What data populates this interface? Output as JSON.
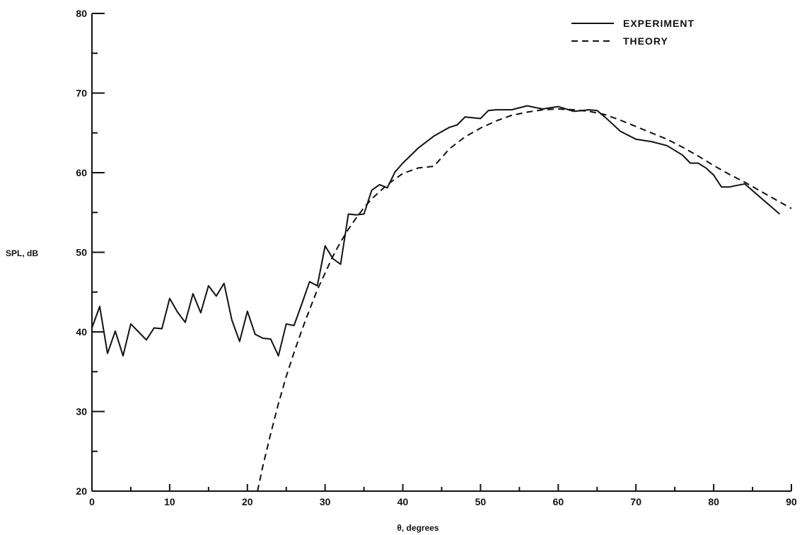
{
  "chart_data": {
    "type": "line",
    "title": "",
    "xlabel": "θ, degrees",
    "ylabel": "SPL, dB",
    "xlim": [
      0,
      90
    ],
    "ylim": [
      20,
      80
    ],
    "x_ticks": [
      0,
      10,
      20,
      30,
      40,
      50,
      60,
      70,
      80,
      90
    ],
    "y_ticks": [
      20,
      30,
      40,
      50,
      60,
      70,
      80
    ],
    "grid": false,
    "legend_position": "top-right",
    "series": [
      {
        "name": "EXPERIMENT",
        "style": "solid",
        "x": [
          0,
          1,
          2,
          3,
          4,
          5,
          6,
          7,
          8,
          9,
          10,
          11,
          12,
          13,
          14,
          15,
          16,
          17,
          18,
          19,
          20,
          21,
          22,
          23,
          24,
          25,
          26,
          27,
          28,
          29,
          30,
          31,
          32,
          33,
          34,
          35,
          36,
          37,
          38,
          39,
          40,
          42,
          44,
          46,
          47,
          48,
          50,
          51,
          52,
          54,
          56,
          58,
          60,
          62,
          64,
          65,
          66,
          68,
          70,
          72,
          74,
          76,
          77,
          78,
          79,
          80,
          81,
          82,
          84,
          86,
          88.5
        ],
        "y": [
          40.5,
          43.2,
          37.3,
          40.1,
          37.0,
          41.0,
          40.0,
          39.0,
          40.5,
          40.4,
          44.2,
          42.5,
          41.2,
          44.8,
          42.4,
          45.8,
          44.5,
          46.1,
          41.5,
          38.8,
          42.6,
          39.7,
          39.2,
          39.1,
          37.0,
          41.0,
          40.8,
          43.5,
          46.3,
          45.8,
          50.8,
          49.2,
          48.5,
          54.8,
          54.7,
          54.8,
          57.8,
          58.5,
          58.1,
          60.1,
          61.2,
          63.1,
          64.6,
          65.7,
          66.0,
          67.0,
          66.8,
          67.8,
          67.9,
          67.9,
          68.4,
          68.0,
          68.3,
          67.7,
          67.9,
          67.8,
          67.0,
          65.2,
          64.2,
          63.9,
          63.4,
          62.2,
          61.2,
          61.2,
          60.6,
          59.7,
          58.2,
          58.2,
          58.6,
          56.9,
          54.8
        ]
      },
      {
        "name": "THEORY",
        "style": "dashed",
        "x": [
          21.3,
          22,
          23,
          24,
          25,
          26,
          27,
          28,
          29,
          30,
          31,
          32,
          33,
          34,
          35,
          36,
          37,
          38,
          39,
          40,
          42,
          44,
          46,
          48,
          50,
          52,
          54,
          56,
          58,
          60,
          62,
          64,
          66,
          68,
          70,
          72,
          74,
          76,
          78,
          80,
          82,
          84,
          86,
          88,
          90
        ],
        "y": [
          20.0,
          23.2,
          27.2,
          31.0,
          34.4,
          37.4,
          40.2,
          42.8,
          45.3,
          47.4,
          49.5,
          51.3,
          52.9,
          54.3,
          55.6,
          56.7,
          57.6,
          58.5,
          59.2,
          59.9,
          60.6,
          60.8,
          63.0,
          64.5,
          65.6,
          66.5,
          67.2,
          67.6,
          67.9,
          68.0,
          67.9,
          67.7,
          67.3,
          66.6,
          65.8,
          65.0,
          64.2,
          63.2,
          62.1,
          60.9,
          59.8,
          58.8,
          57.7,
          56.6,
          55.5
        ]
      }
    ]
  }
}
